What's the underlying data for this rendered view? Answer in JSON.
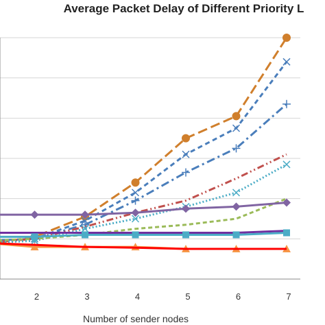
{
  "chart_data": {
    "type": "line",
    "title": "Average Packet Delay of Different Priority L",
    "xlabel": "Number of sender nodes",
    "ylabel": "",
    "x": [
      1,
      2,
      3,
      4,
      5,
      6,
      7
    ],
    "x_tick_labels": [
      "2",
      "3",
      "4",
      "5",
      "6",
      "7"
    ],
    "ylim": [
      0,
      6
    ],
    "grid": true,
    "series": [
      {
        "color": "#D07F2C",
        "marker": "circle",
        "dash": "long-dash",
        "values": [
          0.85,
          1.05,
          1.55,
          2.4,
          3.5,
          4.05,
          6.0
        ]
      },
      {
        "color": "#4A7EBB",
        "marker": "x",
        "dash": "dash",
        "values": [
          0.95,
          1.0,
          1.45,
          2.15,
          3.1,
          3.75,
          5.4
        ]
      },
      {
        "color": "#4A7EBB",
        "marker": "plus",
        "dash": "dash-dot",
        "values": [
          0.95,
          1.0,
          1.35,
          1.95,
          2.65,
          3.25,
          4.35
        ]
      },
      {
        "color": "#C0504D",
        "marker": "none",
        "dash": "dash-dot-dot",
        "values": [
          0.9,
          1.0,
          1.3,
          1.65,
          1.95,
          2.5,
          3.1
        ]
      },
      {
        "color": "#4BACC6",
        "marker": "x",
        "dash": "dot",
        "values": [
          0.9,
          0.95,
          1.25,
          1.5,
          1.8,
          2.15,
          2.85
        ]
      },
      {
        "color": "#9BBB59",
        "marker": "none",
        "dash": "short-dash",
        "values": [
          0.95,
          1.0,
          1.1,
          1.25,
          1.35,
          1.5,
          2.0
        ]
      },
      {
        "color": "#8064A2",
        "marker": "diamond",
        "dash": "solid",
        "values": [
          1.6,
          1.6,
          1.6,
          1.65,
          1.75,
          1.8,
          1.9
        ]
      },
      {
        "color": "#7030A0",
        "marker": "none",
        "dash": "solid",
        "values": [
          1.15,
          1.15,
          1.15,
          1.15,
          1.15,
          1.15,
          1.2
        ]
      },
      {
        "color": "#4BACC6",
        "marker": "square",
        "dash": "solid",
        "values": [
          1.05,
          1.05,
          1.1,
          1.1,
          1.1,
          1.1,
          1.15
        ]
      },
      {
        "color": "#F79646",
        "marker": "triangle",
        "dash": "solid",
        "values": [
          0.9,
          0.8,
          0.8,
          0.8,
          0.75,
          0.75,
          0.75
        ]
      },
      {
        "color": "#FF0000",
        "marker": "none",
        "dash": "solid",
        "values": [
          0.9,
          0.85,
          0.8,
          0.78,
          0.75,
          0.75,
          0.75
        ]
      }
    ]
  }
}
